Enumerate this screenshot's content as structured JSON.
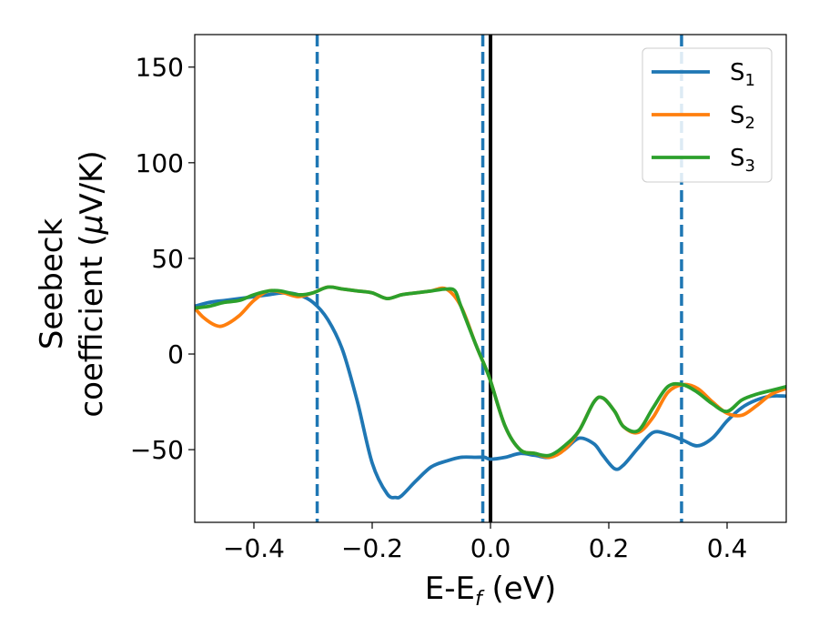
{
  "chart_data": {
    "type": "line",
    "xlabel": "E-E",
    "xlabel_sub": "f",
    "xlabel_unit": " (eV)",
    "ylabel_line1": "Seebeck",
    "ylabel_line2": "coefficient  (",
    "ylabel_mu": "μ",
    "ylabel_unit": "V/K)",
    "xlim": [
      -0.5,
      0.5
    ],
    "ylim": [
      -88,
      167
    ],
    "xticks": [
      -0.4,
      -0.2,
      0.0,
      0.2,
      0.4
    ],
    "xtick_labels": [
      "−0.4",
      "−0.2",
      "0.0",
      "0.2",
      "0.4"
    ],
    "yticks": [
      150,
      100,
      50,
      0,
      -50
    ],
    "ytick_labels": [
      "150",
      "100",
      "50",
      "0",
      "−50"
    ],
    "grid": false,
    "legend_position": "top-right",
    "series": [
      {
        "name": "S",
        "sub": "1",
        "color": "#1f77b4",
        "x": [
          -0.5,
          -0.475,
          -0.45,
          -0.425,
          -0.4,
          -0.375,
          -0.35,
          -0.325,
          -0.3,
          -0.275,
          -0.25,
          -0.225,
          -0.2,
          -0.175,
          -0.16,
          -0.15,
          -0.125,
          -0.1,
          -0.075,
          -0.05,
          -0.025,
          -0.01,
          0.0,
          0.025,
          0.05,
          0.075,
          0.1,
          0.125,
          0.15,
          0.175,
          0.19,
          0.21,
          0.225,
          0.25,
          0.275,
          0.3,
          0.325,
          0.35,
          0.375,
          0.4,
          0.425,
          0.45,
          0.475,
          0.5
        ],
        "y": [
          25,
          27,
          28,
          29,
          30,
          31,
          32,
          31,
          27,
          18,
          2,
          -25,
          -57,
          -73,
          -75,
          -74,
          -66,
          -59,
          -56,
          -54,
          -54,
          -54,
          -55,
          -54,
          -52,
          -53,
          -54,
          -50,
          -44,
          -47,
          -53,
          -60,
          -58,
          -49,
          -41,
          -42,
          -45,
          -48,
          -44,
          -35,
          -28,
          -24,
          -22,
          -22
        ]
      },
      {
        "name": "S",
        "sub": "2",
        "color": "#ff7f0e",
        "x": [
          -0.5,
          -0.485,
          -0.465,
          -0.45,
          -0.425,
          -0.4,
          -0.375,
          -0.35,
          -0.325,
          -0.3,
          -0.275,
          -0.25,
          -0.225,
          -0.2,
          -0.175,
          -0.15,
          -0.125,
          -0.1,
          -0.075,
          -0.05,
          -0.025,
          -0.01,
          0.0,
          0.025,
          0.05,
          0.075,
          0.1,
          0.125,
          0.15,
          0.175,
          0.19,
          0.21,
          0.225,
          0.25,
          0.275,
          0.3,
          0.325,
          0.35,
          0.375,
          0.4,
          0.425,
          0.45,
          0.475,
          0.5
        ],
        "y": [
          24,
          19,
          15,
          15,
          20,
          28,
          33,
          32,
          30,
          32,
          35,
          34,
          33,
          32,
          29,
          31,
          32,
          33,
          34,
          25,
          5,
          -6,
          -14,
          -38,
          -50,
          -52,
          -54,
          -50,
          -40,
          -25,
          -23,
          -30,
          -38,
          -41,
          -33,
          -20,
          -16,
          -18,
          -25,
          -31,
          -32,
          -27,
          -21,
          -18
        ]
      },
      {
        "name": "S",
        "sub": "3",
        "color": "#2ca02c",
        "x": [
          -0.5,
          -0.475,
          -0.45,
          -0.425,
          -0.4,
          -0.375,
          -0.355,
          -0.325,
          -0.3,
          -0.275,
          -0.25,
          -0.225,
          -0.2,
          -0.175,
          -0.15,
          -0.125,
          -0.1,
          -0.075,
          -0.06,
          -0.05,
          -0.025,
          -0.01,
          0.0,
          0.025,
          0.05,
          0.075,
          0.1,
          0.125,
          0.15,
          0.175,
          0.19,
          0.21,
          0.225,
          0.25,
          0.275,
          0.3,
          0.325,
          0.35,
          0.375,
          0.4,
          0.425,
          0.45,
          0.475,
          0.5
        ],
        "y": [
          24,
          25,
          27,
          28,
          31,
          33,
          33,
          31,
          32,
          35,
          34,
          33,
          32,
          29,
          31,
          32,
          33,
          34,
          33,
          25,
          5,
          -6,
          -14,
          -38,
          -50,
          -52,
          -53,
          -48,
          -40,
          -25,
          -23,
          -30,
          -38,
          -40,
          -28,
          -17,
          -16,
          -20,
          -26,
          -30,
          -24,
          -21,
          -19,
          -17
        ]
      }
    ],
    "vlines": [
      {
        "x": -0.293,
        "style": "dashed",
        "color": "#1f77b4"
      },
      {
        "x": -0.013,
        "style": "dashed",
        "color": "#1f77b4"
      },
      {
        "x": 0.0,
        "style": "solid",
        "color": "#000000"
      },
      {
        "x": 0.323,
        "style": "dashed",
        "color": "#1f77b4"
      }
    ]
  }
}
